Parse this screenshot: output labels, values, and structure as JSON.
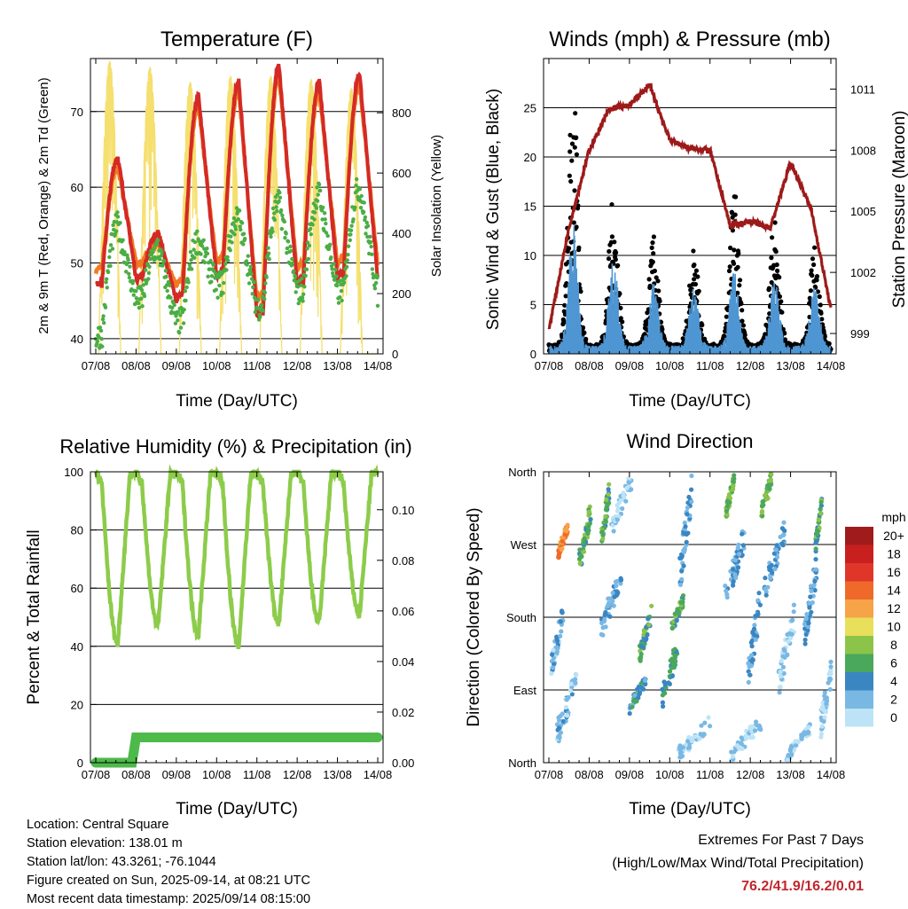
{
  "charts": {
    "temperature": {
      "title": "Temperature (F)",
      "xlabel": "Time (Day/UTC)",
      "ylabel_left": "2m & 9m T (Red, Orange) & 2m Td (Green)",
      "ylabel_right": "Solar Insolation (Yellow)",
      "x_ticks": [
        "07/08",
        "08/08",
        "09/08",
        "10/08",
        "11/08",
        "12/08",
        "13/08",
        "14/08"
      ],
      "y_left_ticks": [
        "40",
        "50",
        "60",
        "70"
      ],
      "y_right_ticks": [
        "0",
        "200",
        "400",
        "600",
        "800"
      ]
    },
    "winds": {
      "title": "Winds (mph) & Pressure (mb)",
      "xlabel": "Time (Day/UTC)",
      "ylabel_left": "Sonic Wind & Gust (Blue, Black)",
      "ylabel_right": "Station Pressure (Maroon)",
      "x_ticks": [
        "07/08",
        "08/08",
        "09/08",
        "10/08",
        "11/08",
        "12/08",
        "13/08",
        "14/08"
      ],
      "y_left_ticks": [
        "0",
        "5",
        "10",
        "15",
        "20",
        "25"
      ],
      "y_right_ticks": [
        "999",
        "1002",
        "1005",
        "1008",
        "1011"
      ]
    },
    "humidity": {
      "title": "Relative Humidity (%) & Precipitation (in)",
      "xlabel": "Time (Day/UTC)",
      "ylabel_left": "Percent & Total Rainfall",
      "x_ticks": [
        "07/08",
        "08/08",
        "09/08",
        "10/08",
        "11/08",
        "12/08",
        "13/08",
        "14/08"
      ],
      "y_left_ticks": [
        "0",
        "20",
        "40",
        "60",
        "80",
        "100"
      ],
      "y_right_ticks": [
        "0.00",
        "0.02",
        "0.04",
        "0.06",
        "0.08",
        "0.10"
      ]
    },
    "direction": {
      "title": "Wind Direction",
      "xlabel": "Time (Day/UTC)",
      "ylabel_left": "Direction (Colored By Speed)",
      "x_ticks": [
        "07/08",
        "08/08",
        "09/08",
        "10/08",
        "11/08",
        "12/08",
        "13/08",
        "14/08"
      ],
      "y_left_ticks": [
        "North",
        "East",
        "South",
        "West",
        "North"
      ],
      "legend_title": "mph",
      "legend_labels": [
        "20+",
        "18",
        "16",
        "14",
        "12",
        "10",
        "8",
        "6",
        "4",
        "2",
        "0"
      ],
      "legend_colors": [
        "#a01c1c",
        "#c8201f",
        "#e0362a",
        "#ef6a2a",
        "#f7a347",
        "#e8e05a",
        "#8cc44a",
        "#4aa85c",
        "#3a86c2",
        "#7ab8e4",
        "#bde4f6"
      ]
    }
  },
  "colors": {
    "temp2m": "#d42a25",
    "temp9m": "#f07a24",
    "dewpoint": "#4aae44",
    "solar": "#f5df6e",
    "wind": "#4f96d3",
    "gust": "#000000",
    "pressure": "#9d1a1a",
    "rh": "#8ccc4a",
    "precip": "#4dba4a"
  },
  "info": {
    "location": "Location: Central Square",
    "elevation": "Station elevation: 138.01 m",
    "latlon": "Station lat/lon: 43.3261; -76.1044",
    "created": "Figure created on Sun, 2025-09-14, at 08:21 UTC",
    "recent": "Most recent data timestamp: 2025/09/14 08:15:00"
  },
  "extremes": {
    "line1": "Extremes For Past 7 Days",
    "line2": "(High/Low/Max Wind/Total Precipitation)",
    "values": "76.2/41.9/16.2/0.01"
  },
  "chart_data": [
    {
      "type": "line",
      "title": "Temperature (F)",
      "x_range": [
        "07/08",
        "14/08"
      ],
      "ylim": [
        38,
        77
      ],
      "y2lim": [
        0,
        980
      ],
      "daily_extremes": {
        "days": [
          "07/08",
          "08/08",
          "09/08",
          "10/08",
          "11/08",
          "12/08",
          "13/08"
        ],
        "temp_high": [
          64,
          54,
          72,
          74,
          76,
          74,
          75
        ],
        "temp_low": [
          47,
          48,
          45,
          48,
          43,
          47,
          48
        ],
        "dewpoint_high": [
          55,
          52,
          53,
          56,
          58,
          59,
          60
        ],
        "dewpoint_low": [
          40,
          45,
          42,
          47,
          44,
          46,
          46
        ],
        "solar_peak": [
          970,
          950,
          900,
          920,
          920,
          910,
          880
        ]
      }
    },
    {
      "type": "scatter",
      "title": "Winds (mph) & Pressure (mb)",
      "ylim": [
        0,
        30
      ],
      "y2lim": [
        998,
        1012.5
      ],
      "pressure": {
        "x": [
          "07/08 00",
          "07/08 12",
          "08/08 00",
          "08/08 12",
          "09/08 00",
          "09/08 12",
          "10/08 00",
          "10/08 12",
          "11/08 00",
          "11/08 12",
          "12/08 00",
          "12/08 12",
          "13/08 00",
          "13/08 12",
          "14/08 00"
        ],
        "values": [
          999.2,
          1004.2,
          1008.0,
          1010.0,
          1010.2,
          1011.2,
          1008.5,
          1008.1,
          1008.0,
          1004.3,
          1004.5,
          1004.2,
          1007.4,
          1005.2,
          1000.2
        ]
      },
      "daily_max_gust": [
        28,
        16,
        12,
        11,
        17,
        14,
        11
      ],
      "daily_max_wind": [
        16,
        12,
        9,
        8,
        10,
        9,
        8
      ]
    },
    {
      "type": "line",
      "title": "Relative Humidity (%) & Precipitation (in)",
      "ylim": [
        0,
        100
      ],
      "y2lim": [
        0,
        0.115
      ],
      "rh_daily_min": [
        41,
        47,
        44,
        40,
        48,
        48,
        51
      ],
      "rh_daily_max": [
        100,
        100,
        100,
        100,
        100,
        100,
        100
      ],
      "precip_total": {
        "x": [
          "07/08 00",
          "07/08 22",
          "08/08 00",
          "14/08 00"
        ],
        "values": [
          0.0,
          0.0,
          0.01,
          0.01
        ]
      }
    },
    {
      "type": "scatter",
      "title": "Wind Direction",
      "y_categories": [
        "North",
        "East",
        "South",
        "West",
        "North"
      ],
      "color_scale_mph": [
        0,
        2,
        4,
        6,
        8,
        10,
        12,
        14,
        16,
        18,
        20
      ]
    }
  ]
}
